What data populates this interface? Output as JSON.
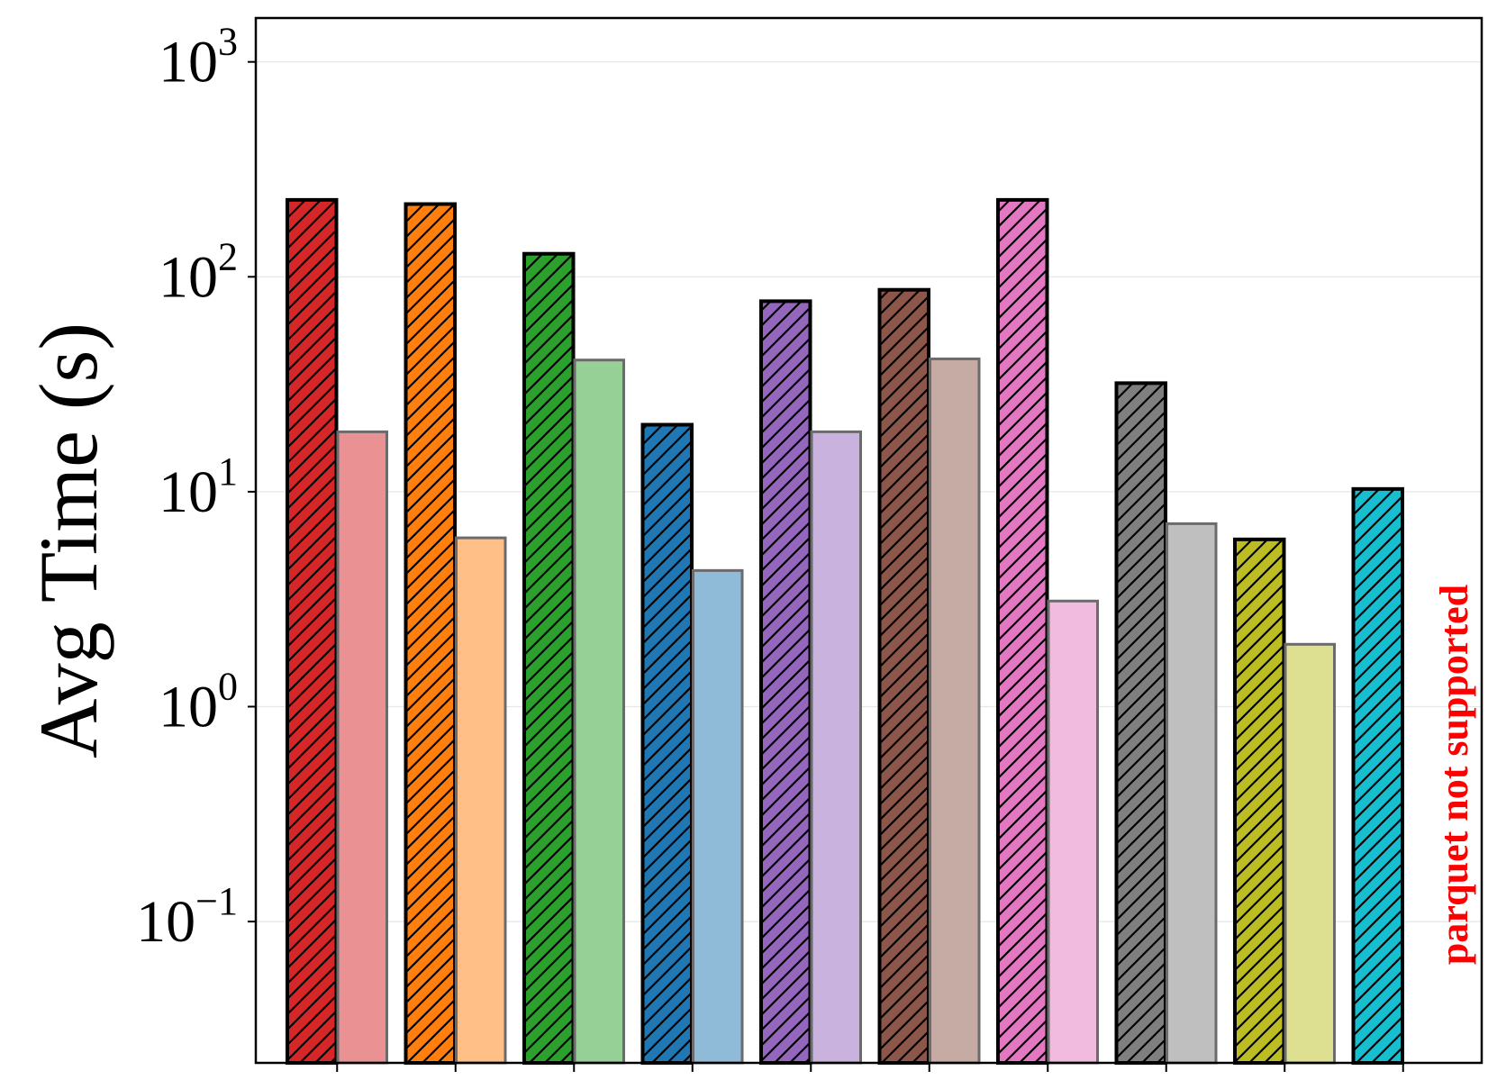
{
  "chart_data": {
    "type": "bar",
    "title": "",
    "xlabel": "",
    "ylabel": "Avg Time (s)",
    "yscale": "log",
    "ylim": [
      0.022,
      1600
    ],
    "yticks": [
      {
        "value": 0.1,
        "base": "10",
        "exp": "−1"
      },
      {
        "value": 1,
        "base": "10",
        "exp": "0"
      },
      {
        "value": 10,
        "base": "10",
        "exp": "1"
      },
      {
        "value": 100,
        "base": "10",
        "exp": "2"
      },
      {
        "value": 1000,
        "base": "10",
        "exp": "3"
      }
    ],
    "grid": true,
    "legend": "none",
    "series": [
      {
        "name": "hatched",
        "style": "hatched",
        "values": [
          228,
          218,
          128,
          20.5,
          77,
          87,
          228,
          32,
          6,
          10.3
        ],
        "colors": [
          "#d62728",
          "#ff7f0e",
          "#2ca02c",
          "#1f77b4",
          "#9467bd",
          "#8c564b",
          "#e377c2",
          "#7f7f7f",
          "#bcbd22",
          "#17becf"
        ]
      },
      {
        "name": "plain",
        "style": "light",
        "values": [
          19,
          6.1,
          41,
          4.3,
          19,
          41.5,
          3.1,
          7.1,
          1.95,
          null
        ],
        "colors": [
          "#ea9293",
          "#ffbf87",
          "#96d096",
          "#8fbbd9",
          "#c9b3de",
          "#c6aba5",
          "#f1bbe0",
          "#bfbfbf",
          "#dddf91",
          "#8bdfe7"
        ]
      }
    ],
    "annotations": [
      {
        "text": "parquet not supported",
        "color": "#ff0000",
        "rotation": -90,
        "group": 9
      }
    ]
  }
}
